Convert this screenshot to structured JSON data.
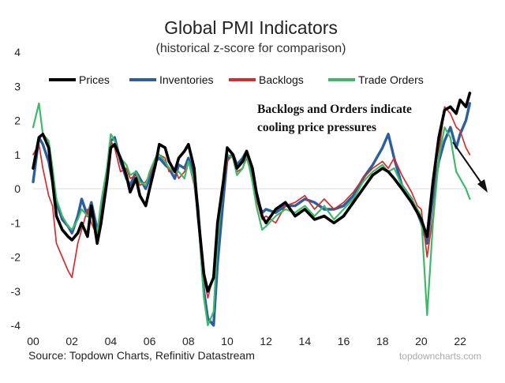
{
  "chart_data": {
    "type": "line",
    "title": "Global PMI Indicators",
    "subtitle": "(historical z-score for comparison)",
    "xlabel": "",
    "ylabel": "",
    "xlim": [
      2000,
      2023.5
    ],
    "ylim": [
      -4,
      4
    ],
    "yticks": [
      "4",
      "3",
      "2",
      "1",
      "0",
      "-1",
      "-2",
      "-3",
      "-4"
    ],
    "xticks": [
      "00",
      "02",
      "04",
      "06",
      "08",
      "10",
      "12",
      "14",
      "16",
      "18",
      "20",
      "22"
    ],
    "legend": [
      "Prices",
      "Inventories",
      "Backlogs",
      "Trade Orders"
    ],
    "annotation_lines": [
      "Backlogs and Orders indicate",
      "cooling price pressures"
    ],
    "source": "Source: Topdown Charts, Refinitiv Datastream",
    "brand": "topdowncharts.com",
    "colors": {
      "Prices": "#000000",
      "Inventories": "#2b5f9e",
      "Backlogs": "#d92b2b",
      "Trade Orders": "#3cba6a"
    },
    "series": [
      {
        "name": "Prices",
        "x": [
          2000.0,
          2000.3,
          2000.5,
          2000.8,
          2001.0,
          2001.2,
          2001.5,
          2001.8,
          2002.0,
          2002.3,
          2002.5,
          2002.8,
          2003.0,
          2003.3,
          2003.5,
          2003.8,
          2004.0,
          2004.2,
          2004.5,
          2004.8,
          2005.0,
          2005.3,
          2005.5,
          2005.8,
          2006.0,
          2006.3,
          2006.5,
          2006.8,
          2007.0,
          2007.3,
          2007.5,
          2007.8,
          2008.0,
          2008.3,
          2008.5,
          2008.8,
          2009.0,
          2009.3,
          2009.5,
          2009.8,
          2010.0,
          2010.3,
          2010.5,
          2010.8,
          2011.0,
          2011.3,
          2011.5,
          2011.8,
          2012.0,
          2012.5,
          2013.0,
          2013.5,
          2014.0,
          2014.5,
          2015.0,
          2015.5,
          2016.0,
          2016.5,
          2017.0,
          2017.5,
          2018.0,
          2018.3,
          2018.6,
          2019.0,
          2019.5,
          2019.8,
          2020.0,
          2020.3,
          2020.6,
          2020.9,
          2021.2,
          2021.5,
          2021.8,
          2022.0,
          2022.3,
          2022.5
        ],
        "values": [
          0.6,
          1.5,
          1.6,
          1.2,
          0.2,
          -0.8,
          -1.2,
          -1.4,
          -1.5,
          -1.3,
          -1.0,
          -1.4,
          -0.5,
          -1.6,
          -1.0,
          0.2,
          1.2,
          1.3,
          0.9,
          0.4,
          -0.1,
          0.3,
          -0.2,
          -0.5,
          0.0,
          0.7,
          1.3,
          1.2,
          0.8,
          0.5,
          0.9,
          1.1,
          1.3,
          0.6,
          -0.8,
          -2.5,
          -3.0,
          -2.6,
          -1.0,
          0.2,
          1.2,
          1.0,
          0.6,
          0.8,
          1.1,
          0.6,
          -0.1,
          -0.8,
          -1.0,
          -0.6,
          -0.4,
          -0.8,
          -0.6,
          -0.9,
          -0.8,
          -1.0,
          -0.8,
          -0.4,
          0.0,
          0.4,
          0.6,
          0.5,
          0.3,
          0.0,
          -0.4,
          -0.7,
          -0.9,
          -1.4,
          0.2,
          1.5,
          2.3,
          2.4,
          2.2,
          2.6,
          2.4,
          2.8
        ]
      },
      {
        "name": "Inventories",
        "x": [
          2000.0,
          2000.3,
          2000.5,
          2000.8,
          2001.0,
          2001.2,
          2001.5,
          2001.8,
          2002.0,
          2002.3,
          2002.5,
          2002.8,
          2003.0,
          2003.3,
          2003.5,
          2003.8,
          2004.0,
          2004.2,
          2004.5,
          2004.8,
          2005.0,
          2005.3,
          2005.5,
          2005.8,
          2006.0,
          2006.3,
          2006.5,
          2006.8,
          2007.0,
          2007.3,
          2007.5,
          2007.8,
          2008.0,
          2008.3,
          2008.5,
          2008.8,
          2009.0,
          2009.3,
          2009.5,
          2009.8,
          2010.0,
          2010.3,
          2010.5,
          2010.8,
          2011.0,
          2011.3,
          2011.5,
          2011.8,
          2012.0,
          2012.5,
          2013.0,
          2013.5,
          2014.0,
          2014.5,
          2015.0,
          2015.5,
          2016.0,
          2016.5,
          2017.0,
          2017.5,
          2018.0,
          2018.3,
          2018.6,
          2019.0,
          2019.5,
          2019.8,
          2020.0,
          2020.3,
          2020.6,
          2020.9,
          2021.2,
          2021.5,
          2021.8,
          2022.0,
          2022.3,
          2022.5
        ],
        "values": [
          0.2,
          1.5,
          1.3,
          0.8,
          0.2,
          -0.4,
          -0.9,
          -1.1,
          -1.3,
          -0.8,
          -0.3,
          -0.8,
          -0.4,
          -1.2,
          -0.8,
          0.4,
          1.4,
          1.5,
          0.8,
          0.3,
          0.1,
          0.5,
          0.3,
          0.0,
          0.3,
          0.8,
          0.9,
          0.7,
          0.6,
          0.3,
          0.7,
          0.6,
          0.9,
          0.4,
          -0.6,
          -3.0,
          -3.8,
          -4.0,
          -2.2,
          -0.3,
          0.9,
          1.0,
          0.7,
          0.9,
          1.1,
          0.5,
          -0.2,
          -0.7,
          -0.6,
          -0.7,
          -0.5,
          -0.5,
          -0.3,
          -0.4,
          -0.6,
          -0.6,
          -0.5,
          -0.2,
          0.3,
          0.7,
          1.2,
          1.6,
          0.9,
          0.1,
          -0.3,
          -0.7,
          -1.0,
          -1.6,
          -0.2,
          0.8,
          1.4,
          1.8,
          1.2,
          1.6,
          2.0,
          2.5
        ]
      },
      {
        "name": "Backlogs",
        "x": [
          2000.0,
          2000.3,
          2000.5,
          2000.8,
          2001.0,
          2001.2,
          2001.5,
          2001.8,
          2002.0,
          2002.3,
          2002.5,
          2002.8,
          2003.0,
          2003.3,
          2003.5,
          2003.8,
          2004.0,
          2004.2,
          2004.5,
          2004.8,
          2005.0,
          2005.3,
          2005.5,
          2005.8,
          2006.0,
          2006.3,
          2006.5,
          2006.8,
          2007.0,
          2007.3,
          2007.5,
          2007.8,
          2008.0,
          2008.3,
          2008.5,
          2008.8,
          2009.0,
          2009.3,
          2009.5,
          2009.8,
          2010.0,
          2010.3,
          2010.5,
          2010.8,
          2011.0,
          2011.3,
          2011.5,
          2011.8,
          2012.0,
          2012.5,
          2013.0,
          2013.5,
          2014.0,
          2014.5,
          2015.0,
          2015.5,
          2016.0,
          2016.5,
          2017.0,
          2017.5,
          2018.0,
          2018.3,
          2018.6,
          2019.0,
          2019.5,
          2019.8,
          2020.0,
          2020.3,
          2020.6,
          2020.9,
          2021.2,
          2021.5,
          2021.8,
          2022.0,
          2022.3,
          2022.5
        ],
        "values": [
          1.0,
          1.3,
          0.6,
          -0.2,
          -0.5,
          -1.6,
          -2.0,
          -2.4,
          -2.6,
          -1.6,
          -1.2,
          -0.6,
          -1.0,
          -1.4,
          -0.4,
          0.6,
          1.4,
          1.2,
          0.5,
          0.6,
          0.3,
          0.4,
          0.1,
          0.2,
          0.4,
          0.9,
          1.0,
          0.9,
          0.5,
          0.6,
          0.3,
          0.5,
          0.8,
          0.1,
          -0.9,
          -2.6,
          -3.2,
          -2.5,
          -1.2,
          0.1,
          0.8,
          1.0,
          0.5,
          0.6,
          0.9,
          0.3,
          -0.3,
          -0.9,
          -0.8,
          -1.0,
          -0.5,
          -0.4,
          -0.2,
          -0.6,
          -0.3,
          -0.6,
          -0.4,
          -0.1,
          0.3,
          0.6,
          0.8,
          0.6,
          0.9,
          0.4,
          -0.1,
          -0.5,
          -0.6,
          -2.0,
          -0.8,
          1.0,
          2.4,
          2.2,
          1.8,
          1.7,
          1.2,
          1.0
        ]
      },
      {
        "name": "Trade Orders",
        "x": [
          2000.0,
          2000.3,
          2000.5,
          2000.8,
          2001.0,
          2001.2,
          2001.5,
          2001.8,
          2002.0,
          2002.3,
          2002.5,
          2002.8,
          2003.0,
          2003.3,
          2003.5,
          2003.8,
          2004.0,
          2004.2,
          2004.5,
          2004.8,
          2005.0,
          2005.3,
          2005.5,
          2005.8,
          2006.0,
          2006.3,
          2006.5,
          2006.8,
          2007.0,
          2007.3,
          2007.5,
          2007.8,
          2008.0,
          2008.3,
          2008.5,
          2008.8,
          2009.0,
          2009.3,
          2009.5,
          2009.8,
          2010.0,
          2010.3,
          2010.5,
          2010.8,
          2011.0,
          2011.3,
          2011.5,
          2011.8,
          2012.0,
          2012.5,
          2013.0,
          2013.5,
          2014.0,
          2014.5,
          2015.0,
          2015.5,
          2016.0,
          2016.5,
          2017.0,
          2017.5,
          2018.0,
          2018.3,
          2018.6,
          2019.0,
          2019.5,
          2019.8,
          2020.0,
          2020.3,
          2020.6,
          2020.9,
          2021.2,
          2021.5,
          2021.8,
          2022.0,
          2022.3,
          2022.5
        ],
        "values": [
          1.8,
          2.5,
          1.6,
          1.4,
          0.6,
          -0.3,
          -0.8,
          -1.1,
          -1.2,
          -0.9,
          -0.6,
          -0.8,
          -0.7,
          -1.3,
          -0.4,
          0.6,
          1.6,
          1.4,
          0.9,
          0.7,
          0.4,
          0.5,
          0.2,
          0.1,
          0.5,
          0.9,
          1.0,
          0.8,
          0.6,
          0.5,
          0.5,
          0.3,
          0.8,
          0.2,
          -0.8,
          -3.2,
          -4.0,
          -3.6,
          -1.5,
          0.2,
          1.0,
          0.9,
          0.4,
          0.6,
          1.0,
          0.2,
          -0.5,
          -1.2,
          -1.1,
          -0.8,
          -0.6,
          -0.7,
          -0.5,
          -0.8,
          -0.5,
          -0.9,
          -0.6,
          -0.3,
          0.2,
          0.5,
          0.7,
          0.5,
          0.6,
          0.1,
          -0.3,
          -0.6,
          -0.8,
          -3.7,
          -1.0,
          0.9,
          1.8,
          1.5,
          0.5,
          0.3,
          0.0,
          -0.3
        ]
      }
    ]
  }
}
